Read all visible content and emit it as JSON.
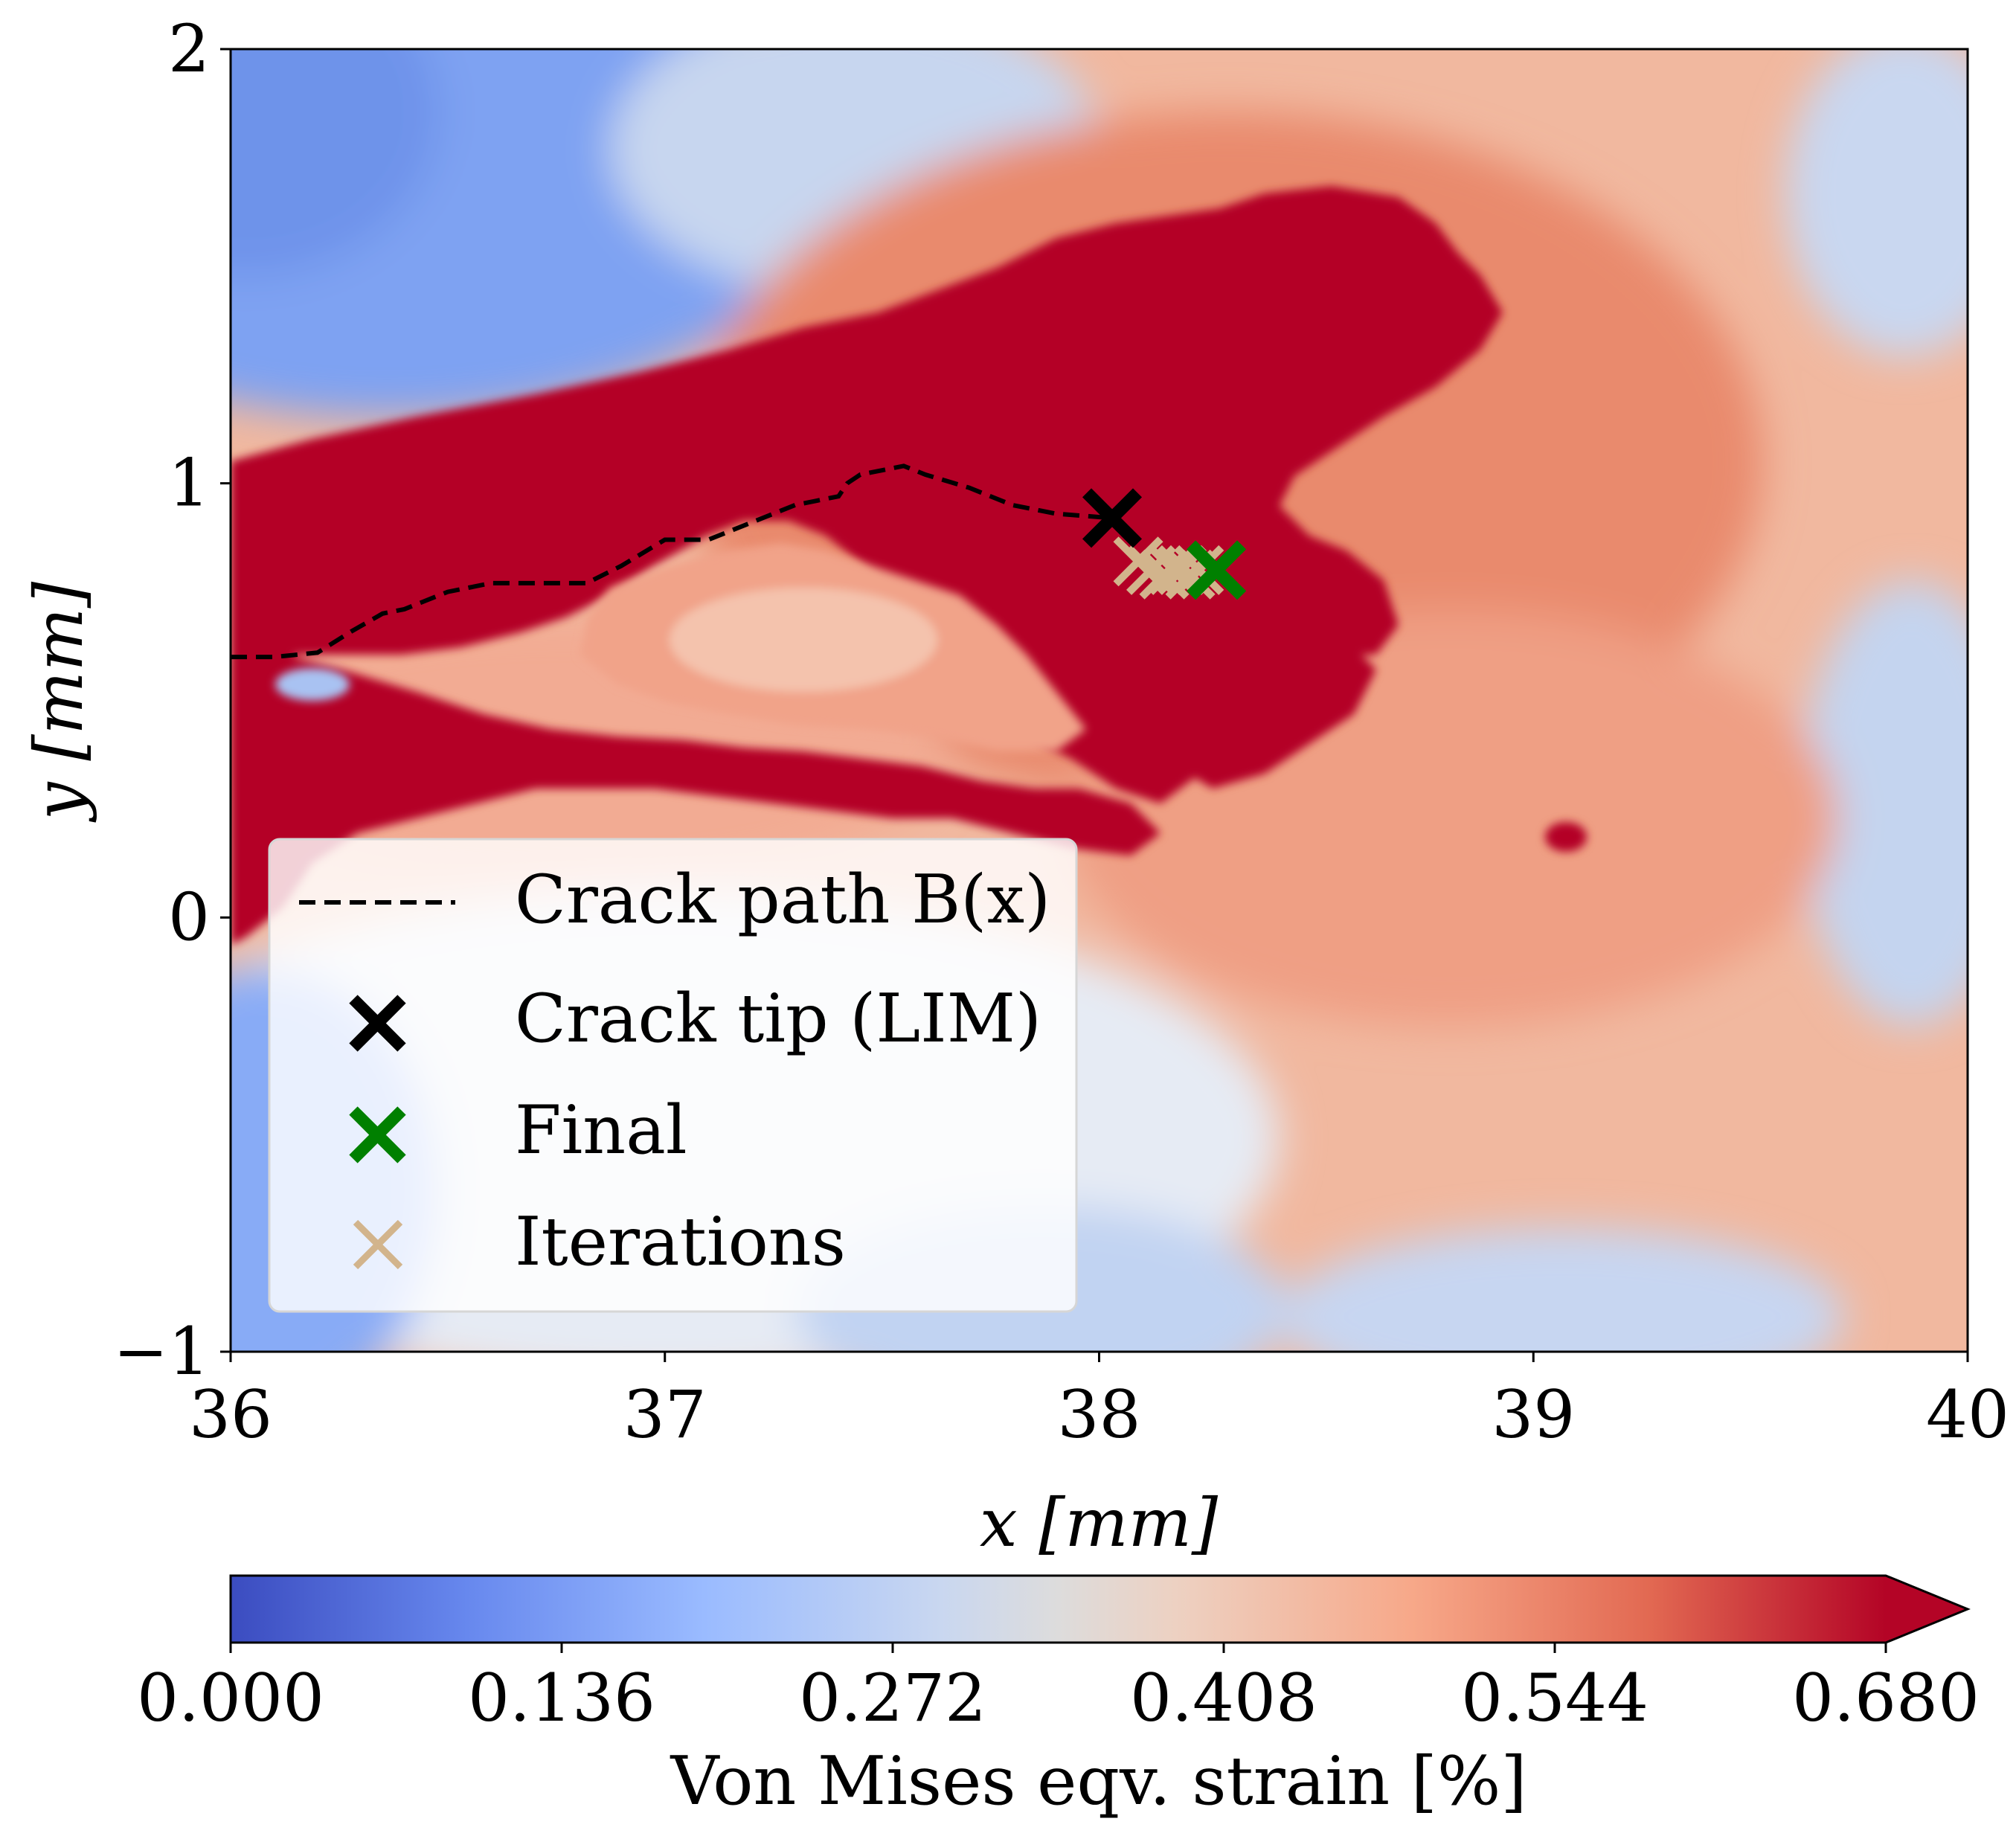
{
  "chart_data": {
    "type": "heatmap",
    "title": "",
    "xlabel": "x [mm]",
    "ylabel": "y [mm]",
    "xlim": [
      36,
      40
    ],
    "ylim": [
      -1,
      2
    ],
    "xticks": [
      "36",
      "37",
      "38",
      "39",
      "40"
    ],
    "yticks": [
      "−1",
      "0",
      "1",
      "2"
    ],
    "field": {
      "quantity": "Von Mises eqv. strain [%]",
      "colormap": "coolwarm",
      "clim": [
        0.0,
        0.68
      ],
      "extend": "max",
      "description_regions": [
        {
          "kind": "saturated_band",
          "value": 0.68,
          "x_range": [
            36.0,
            38.95
          ],
          "y_range": [
            0.2,
            1.6
          ]
        },
        {
          "kind": "low_region",
          "value": 0.28,
          "x_range": [
            36.0,
            38.1
          ],
          "y_range": [
            -1.0,
            -0.05
          ]
        },
        {
          "kind": "low_region",
          "value": 0.15,
          "x_range": [
            36.0,
            37.2
          ],
          "y_range": [
            1.2,
            2.0
          ]
        }
      ]
    },
    "colorbar": {
      "label": "Von Mises eqv. strain [%]",
      "ticks": [
        "0.000",
        "0.136",
        "0.272",
        "0.408",
        "0.544",
        "0.680"
      ],
      "tick_values": [
        0.0,
        0.136,
        0.272,
        0.408,
        0.544,
        0.68
      ],
      "colors": [
        "#3b4cc0",
        "#6788ee",
        "#9abbff",
        "#c9d7f0",
        "#edd1c2",
        "#f7a889",
        "#e26952",
        "#b40426"
      ]
    },
    "series": [
      {
        "name": "Crack path B(x)",
        "style": "dashed",
        "color": "#000000",
        "x": [
          36.0,
          36.1,
          36.2,
          36.28,
          36.35,
          36.4,
          36.45,
          36.5,
          36.55,
          36.6,
          36.7,
          36.82,
          36.9,
          36.95,
          37.0,
          37.05,
          37.1,
          37.2,
          37.25,
          37.3,
          37.35,
          37.4,
          37.42,
          37.45,
          37.5,
          37.55,
          37.6,
          37.7,
          37.8,
          37.9,
          38.03
        ],
        "y": [
          0.6,
          0.6,
          0.61,
          0.66,
          0.7,
          0.71,
          0.73,
          0.75,
          0.76,
          0.77,
          0.77,
          0.77,
          0.81,
          0.84,
          0.87,
          0.87,
          0.87,
          0.91,
          0.93,
          0.95,
          0.96,
          0.97,
          1.0,
          1.02,
          1.03,
          1.04,
          1.02,
          0.99,
          0.95,
          0.93,
          0.92
        ]
      },
      {
        "name": "Crack tip (LIM)",
        "marker": "x",
        "color": "#000000",
        "points": [
          {
            "x": 38.03,
            "y": 0.92
          }
        ]
      },
      {
        "name": "Final",
        "marker": "x",
        "color": "#008000",
        "points": [
          {
            "x": 38.27,
            "y": 0.8
          }
        ]
      },
      {
        "name": "Iterations",
        "marker": "x",
        "color": "#d2b48c",
        "points": [
          {
            "x": 38.09,
            "y": 0.82
          },
          {
            "x": 38.12,
            "y": 0.8
          },
          {
            "x": 38.15,
            "y": 0.79
          },
          {
            "x": 38.17,
            "y": 0.8
          },
          {
            "x": 38.19,
            "y": 0.8
          },
          {
            "x": 38.21,
            "y": 0.79
          },
          {
            "x": 38.23,
            "y": 0.8
          }
        ]
      }
    ],
    "legend": {
      "position": "lower-left",
      "entries": [
        "Crack path B(x)",
        "Crack tip (LIM)",
        "Final",
        "Iterations"
      ]
    }
  }
}
